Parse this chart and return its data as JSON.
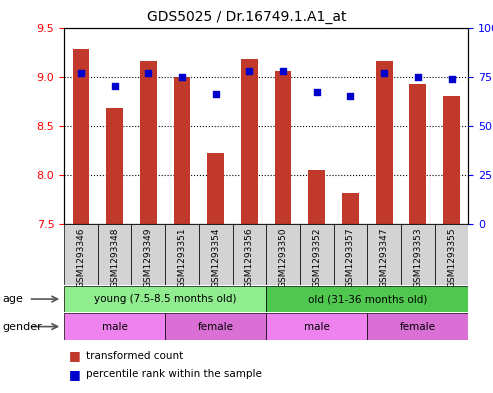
{
  "title": "GDS5025 / Dr.16749.1.A1_at",
  "samples": [
    "GSM1293346",
    "GSM1293348",
    "GSM1293349",
    "GSM1293351",
    "GSM1293354",
    "GSM1293356",
    "GSM1293350",
    "GSM1293352",
    "GSM1293357",
    "GSM1293347",
    "GSM1293353",
    "GSM1293355"
  ],
  "transformed_count": [
    9.28,
    8.68,
    9.16,
    9.0,
    8.22,
    9.18,
    9.06,
    8.05,
    7.82,
    9.16,
    8.92,
    8.8
  ],
  "percentile_rank": [
    77,
    70,
    77,
    75,
    66,
    78,
    78,
    67,
    65,
    77,
    75,
    74
  ],
  "ylim_left": [
    7.5,
    9.5
  ],
  "ylim_right": [
    0,
    100
  ],
  "yticks_left": [
    7.5,
    8.0,
    8.5,
    9.0,
    9.5
  ],
  "yticks_right": [
    0,
    25,
    50,
    75,
    100
  ],
  "right_tick_labels": [
    "0",
    "25",
    "50",
    "75",
    "100%"
  ],
  "bar_color": "#c0392b",
  "dot_color": "#0000cc",
  "bar_bottom": 7.5,
  "age_groups": [
    {
      "label": "young (7.5-8.5 months old)",
      "start": 0,
      "end": 6,
      "color": "#90ee90"
    },
    {
      "label": "old (31-36 months old)",
      "start": 6,
      "end": 12,
      "color": "#50c850"
    }
  ],
  "gender_groups": [
    {
      "label": "male",
      "start": 0,
      "end": 3,
      "color": "#ee82ee"
    },
    {
      "label": "female",
      "start": 3,
      "end": 6,
      "color": "#da70d6"
    },
    {
      "label": "male",
      "start": 6,
      "end": 9,
      "color": "#ee82ee"
    },
    {
      "label": "female",
      "start": 9,
      "end": 12,
      "color": "#da70d6"
    }
  ],
  "tick_bg_color": "#d3d3d3",
  "legend_red_label": "transformed count",
  "legend_blue_label": "percentile rank within the sample",
  "fig_width": 4.93,
  "fig_height": 3.93,
  "fig_dpi": 100
}
